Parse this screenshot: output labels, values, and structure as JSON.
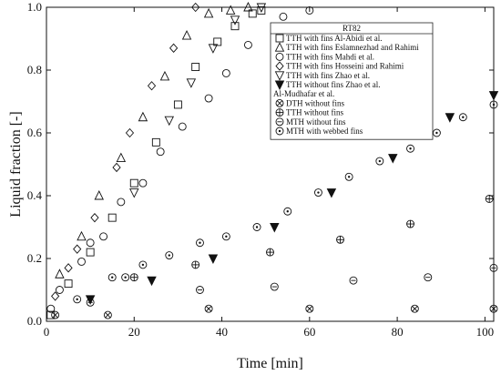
{
  "chart_data": {
    "type": "scatter",
    "xlabel": "Time [min]",
    "ylabel": "Liquid fraction [-]",
    "xlim": [
      0,
      102
    ],
    "ylim": [
      0,
      1.0
    ],
    "xticks": [
      0,
      20,
      40,
      60,
      80,
      100
    ],
    "yticks": [
      0,
      0.2,
      0.4,
      0.6,
      0.8,
      1.0
    ],
    "grid": false,
    "legend": {
      "placement": "top-right",
      "title": "RT82",
      "subheading": "Al-Mudhafar et al."
    },
    "series": [
      {
        "name": "TTH with fins Al-Abidi et al.",
        "marker": "square",
        "x": [
          1,
          5,
          10,
          15,
          20,
          25,
          30,
          34,
          39,
          43,
          47,
          49
        ],
        "y": [
          0.02,
          0.12,
          0.22,
          0.33,
          0.44,
          0.57,
          0.69,
          0.81,
          0.89,
          0.94,
          0.98,
          0.99
        ]
      },
      {
        "name": "TTH with fins Eslamnezhad and Rahimi",
        "marker": "triangle-up",
        "x": [
          3,
          8,
          12,
          17,
          22,
          27,
          32,
          37,
          42,
          46
        ],
        "y": [
          0.15,
          0.27,
          0.4,
          0.52,
          0.65,
          0.78,
          0.91,
          0.98,
          0.99,
          1.0
        ]
      },
      {
        "name": "TTH with fins Mahdi et al.",
        "marker": "circle",
        "x": [
          1,
          3,
          8,
          10,
          13,
          17,
          22,
          26,
          31,
          37,
          41,
          46,
          54,
          60
        ],
        "y": [
          0.04,
          0.1,
          0.19,
          0.25,
          0.27,
          0.38,
          0.44,
          0.54,
          0.62,
          0.71,
          0.79,
          0.88,
          0.97,
          0.99
        ]
      },
      {
        "name": "TTH with fins Hosseini and Rahimi",
        "marker": "diamond",
        "x": [
          2,
          5,
          7,
          11,
          16,
          19,
          24,
          29,
          34
        ],
        "y": [
          0.08,
          0.17,
          0.23,
          0.33,
          0.49,
          0.6,
          0.75,
          0.87,
          1.0
        ]
      },
      {
        "name": "TTH with fins Zhao et al.",
        "marker": "triangle-down",
        "x": [
          20,
          28,
          33,
          38,
          43,
          49
        ],
        "y": [
          0.41,
          0.64,
          0.76,
          0.87,
          0.96,
          1.0
        ]
      },
      {
        "name": "TTH without fins Zhao et al.",
        "marker": "triangle-down-filled",
        "x": [
          10,
          24,
          38,
          52,
          65,
          79,
          92,
          102
        ],
        "y": [
          0.07,
          0.13,
          0.2,
          0.3,
          0.41,
          0.52,
          0.65,
          0.72
        ]
      },
      {
        "name": "DTH without fins",
        "marker": "circle-x",
        "x": [
          2,
          14,
          37,
          60,
          84,
          102
        ],
        "y": [
          0.02,
          0.02,
          0.04,
          0.04,
          0.04,
          0.04
        ]
      },
      {
        "name": "TTH without fins",
        "marker": "circle-plus",
        "x": [
          20,
          34,
          51,
          67,
          83,
          101
        ],
        "y": [
          0.14,
          0.18,
          0.22,
          0.26,
          0.31,
          0.39
        ]
      },
      {
        "name": "MTH without fins",
        "marker": "circle-minus",
        "x": [
          10,
          35,
          52,
          70,
          87,
          102
        ],
        "y": [
          0.06,
          0.1,
          0.11,
          0.13,
          0.14,
          0.17
        ]
      },
      {
        "name": "MTH with webbed fins",
        "marker": "circle-dot",
        "x": [
          7,
          15,
          18,
          22,
          28,
          35,
          41,
          48,
          55,
          62,
          69,
          76,
          83,
          89,
          95,
          102
        ],
        "y": [
          0.07,
          0.14,
          0.14,
          0.18,
          0.21,
          0.25,
          0.27,
          0.3,
          0.35,
          0.41,
          0.46,
          0.51,
          0.55,
          0.6,
          0.65,
          0.69
        ]
      }
    ]
  }
}
